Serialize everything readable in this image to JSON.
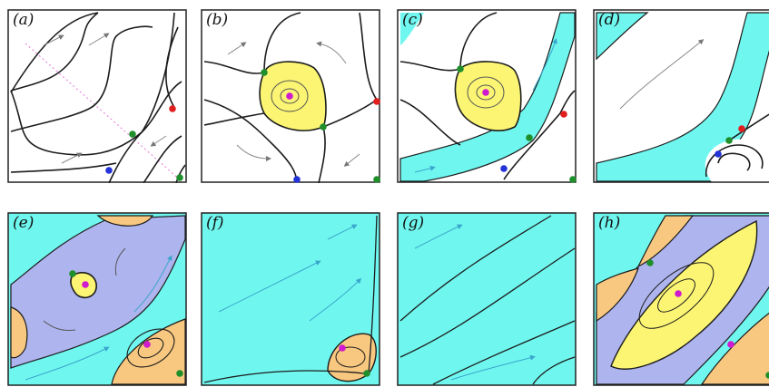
{
  "colors": {
    "cyan_region": "#6ff7ef",
    "yellow_region": "#fbf573",
    "orange_region": "#f9c880",
    "lavender_region": "#aeb4ee",
    "node_green": "#1f8f2b",
    "node_red": "#e21f1f",
    "node_blue": "#2333d8",
    "node_magenta": "#d01ad0",
    "separatrix": "#1c1c1c",
    "streamline_cyan": "#3aa6cc"
  },
  "panels": [
    {
      "id": "a",
      "label": "(a)"
    },
    {
      "id": "b",
      "label": "(b)"
    },
    {
      "id": "c",
      "label": "(c)"
    },
    {
      "id": "d",
      "label": "(d)"
    },
    {
      "id": "e",
      "label": "(e)"
    },
    {
      "id": "f",
      "label": "(f)"
    },
    {
      "id": "g",
      "label": "(g)"
    },
    {
      "id": "h",
      "label": "(h)"
    }
  ]
}
